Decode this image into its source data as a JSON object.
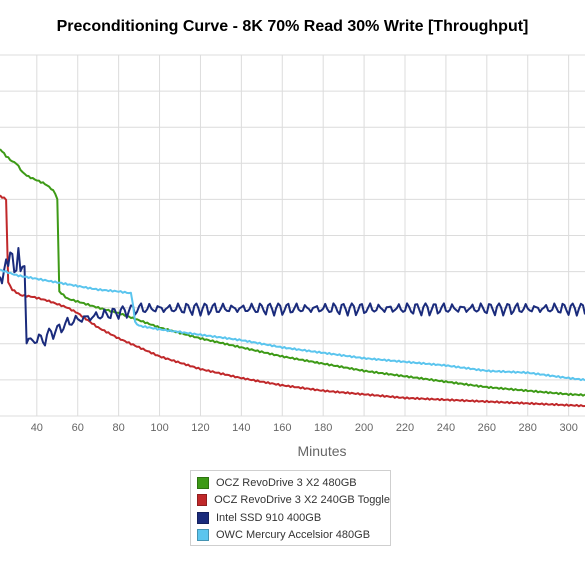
{
  "chart_data": {
    "type": "line",
    "title": "Preconditioning Curve - 8K 70% Read 30% Write [Throughput]",
    "xlabel": "Minutes",
    "ylabel": "",
    "xlim": [
      22,
      308
    ],
    "ylim": [
      0,
      1
    ],
    "x_ticks": [
      40,
      60,
      80,
      100,
      120,
      140,
      160,
      180,
      200,
      220,
      240,
      260,
      280,
      300
    ],
    "grid": true,
    "legend_position": "bottom-center",
    "series": [
      {
        "name": "OCZ RevoDrive 3 X2 480GB",
        "color": "#3d9a16",
        "x": [
          22,
          25,
          28,
          30,
          33,
          36,
          40,
          44,
          47,
          49,
          50,
          51,
          55,
          60,
          70,
          80,
          90,
          100,
          120,
          140,
          160,
          180,
          200,
          220,
          240,
          260,
          280,
          300,
          308
        ],
        "y": [
          0.74,
          0.72,
          0.705,
          0.7,
          0.675,
          0.663,
          0.653,
          0.643,
          0.63,
          0.617,
          0.6,
          0.345,
          0.325,
          0.317,
          0.3,
          0.285,
          0.265,
          0.245,
          0.215,
          0.19,
          0.165,
          0.145,
          0.125,
          0.11,
          0.095,
          0.08,
          0.07,
          0.06,
          0.058
        ]
      },
      {
        "name": "OCZ RevoDrive 3 X2 240GB Toggle",
        "color": "#c0282a",
        "x": [
          22,
          25,
          26,
          28,
          32,
          38,
          45,
          55,
          60,
          70,
          80,
          90,
          100,
          120,
          140,
          160,
          180,
          200,
          220,
          240,
          260,
          280,
          300,
          308
        ],
        "y": [
          0.61,
          0.6,
          0.37,
          0.35,
          0.335,
          0.33,
          0.32,
          0.3,
          0.285,
          0.245,
          0.215,
          0.19,
          0.165,
          0.13,
          0.105,
          0.085,
          0.07,
          0.06,
          0.05,
          0.045,
          0.04,
          0.035,
          0.03,
          0.028
        ]
      },
      {
        "name": "Intel SSD 910 400GB",
        "color": "#1a2b7c",
        "x": [
          22,
          27,
          30,
          31,
          32,
          34,
          35,
          37,
          40,
          43,
          46,
          50,
          55,
          60,
          70,
          80,
          90,
          100,
          120,
          140,
          160,
          180,
          200,
          220,
          240,
          260,
          280,
          300,
          308
        ],
        "y": [
          0.37,
          0.45,
          0.4,
          0.45,
          0.42,
          0.4,
          0.22,
          0.2,
          0.22,
          0.21,
          0.23,
          0.24,
          0.26,
          0.27,
          0.28,
          0.29,
          0.3,
          0.3,
          0.3,
          0.3,
          0.3,
          0.3,
          0.3,
          0.3,
          0.3,
          0.3,
          0.3,
          0.3,
          0.3
        ]
      },
      {
        "name": "OWC Mercury Accelsior 480GB",
        "color": "#5bc5ee",
        "x": [
          22,
          30,
          40,
          50,
          60,
          70,
          80,
          86,
          87,
          88,
          90,
          100,
          120,
          140,
          160,
          180,
          200,
          220,
          240,
          260,
          280,
          300,
          308
        ],
        "y": [
          0.405,
          0.39,
          0.38,
          0.37,
          0.36,
          0.35,
          0.345,
          0.34,
          0.31,
          0.26,
          0.25,
          0.24,
          0.225,
          0.21,
          0.19,
          0.175,
          0.16,
          0.15,
          0.14,
          0.125,
          0.12,
          0.105,
          0.1
        ]
      }
    ]
  }
}
